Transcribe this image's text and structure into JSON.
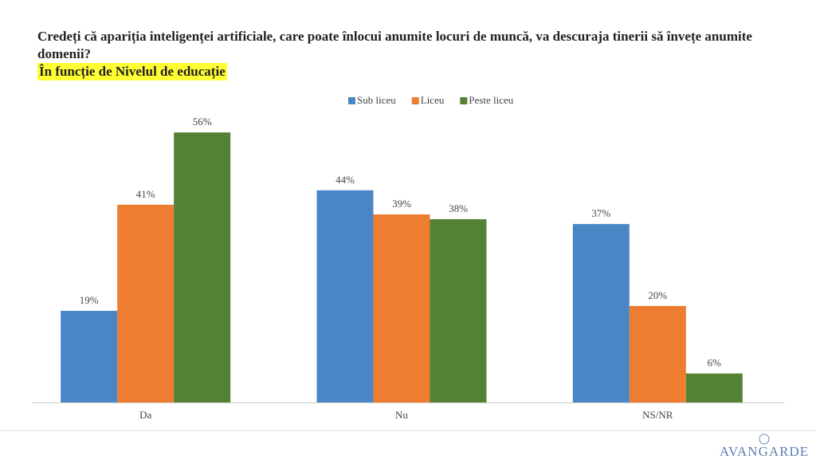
{
  "chart_data": {
    "type": "bar",
    "title": "Credeți că apariția inteligenței artificiale, care poate înlocui anumite locuri de muncă, va descuraja tinerii să învețe anumite domenii?",
    "subtitle": "În funcție de Nivelul de educație",
    "categories": [
      "Da",
      "Nu",
      "NS/NR"
    ],
    "series": [
      {
        "name": "Sub liceu",
        "color": "#4a86c5",
        "values": [
          19,
          44,
          37
        ],
        "value_labels": [
          "19%",
          "44%",
          "37%"
        ]
      },
      {
        "name": "Liceu",
        "color": "#ed7d31",
        "values": [
          41,
          39,
          20
        ],
        "value_labels": [
          "41%",
          "39%",
          "20%"
        ]
      },
      {
        "name": "Peste liceu",
        "color": "#548235",
        "values": [
          56,
          38,
          6
        ],
        "value_labels": [
          "56%",
          "38%",
          "6%"
        ]
      }
    ],
    "legend": "top",
    "logo": "AVANGARDE"
  }
}
